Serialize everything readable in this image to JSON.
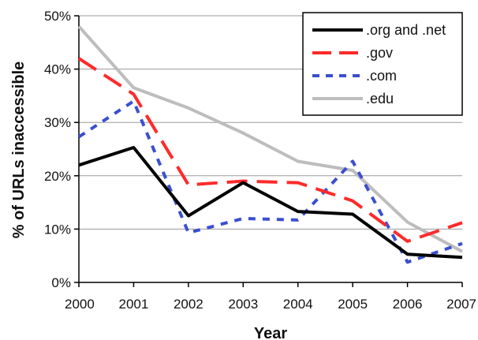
{
  "chart_data": {
    "type": "line",
    "title": "",
    "xlabel": "Year",
    "ylabel": "% of URLs inaccessible",
    "categories": [
      "2000",
      "2001",
      "2002",
      "2003",
      "2004",
      "2005",
      "2006",
      "2007"
    ],
    "ylim": [
      0,
      50
    ],
    "yticks": [
      0,
      10,
      20,
      30,
      40,
      50
    ],
    "ytick_labels": [
      "0%",
      "10%",
      "20%",
      "30%",
      "40%",
      "50%"
    ],
    "grid": "horizontal",
    "legend_position": "top-right",
    "series": [
      {
        "name": ".org and .net",
        "color": "#000000",
        "style": "solid",
        "values": [
          22,
          25.3,
          12.5,
          18.7,
          13.3,
          12.8,
          5.3,
          4.7
        ]
      },
      {
        "name": ".gov",
        "color": "#ff2a2a",
        "style": "long-dash",
        "values": [
          42,
          35.3,
          18.3,
          19,
          18.7,
          15.3,
          7.7,
          11.2
        ]
      },
      {
        "name": ".com",
        "color": "#3a4fd0",
        "style": "short-dash",
        "values": [
          27.3,
          34,
          9.3,
          12,
          11.7,
          22.7,
          3.8,
          7.3
        ]
      },
      {
        "name": ".edu",
        "color": "#bdbdbd",
        "style": "solid",
        "values": [
          48,
          36.5,
          32.7,
          28,
          22.7,
          21,
          11.3,
          5.8
        ]
      }
    ]
  }
}
